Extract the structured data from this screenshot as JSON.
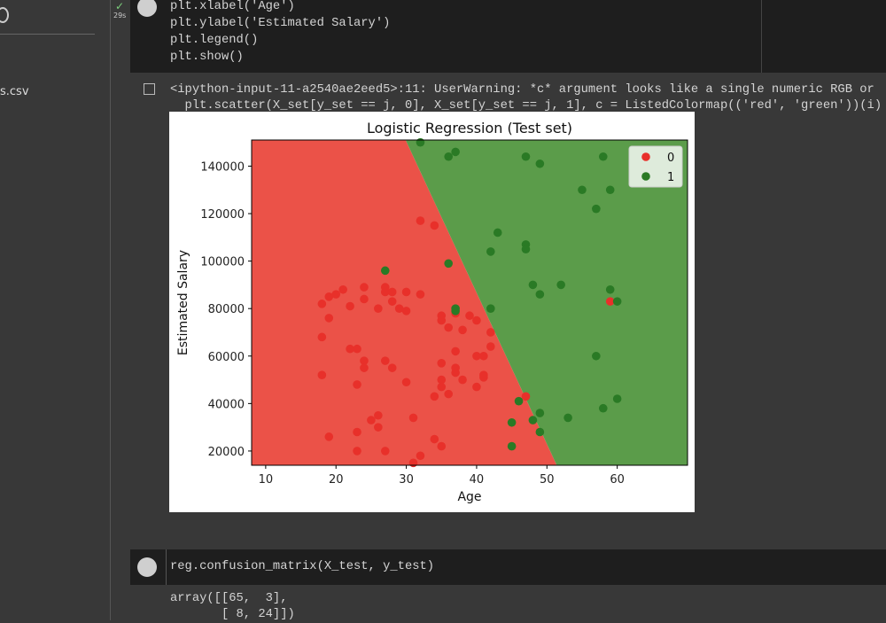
{
  "sidebar": {
    "file_label": "s.csv"
  },
  "code_cell_1": {
    "exec_time": "29s",
    "lines": [
      "plt.xlabel('Age')",
      "plt.ylabel('Estimated Salary')",
      "plt.legend()",
      "plt.show()"
    ]
  },
  "output_1": {
    "warning_lines": [
      "<ipython-input-11-a2540ae2eed5>:11: UserWarning: *c* argument looks like a single numeric RGB or",
      "  plt.scatter(X_set[y_set == j, 0], X_set[y_set == j, 1], c = ListedColormap(('red', 'green'))(i)"
    ]
  },
  "chart_data": {
    "type": "scatter",
    "title": "Logistic Regression (Test set)",
    "x_label": "Age",
    "y_label": "Estimated Salary",
    "xlim": [
      8,
      70
    ],
    "ylim": [
      14000,
      151000
    ],
    "xticks": [
      10,
      20,
      30,
      40,
      50,
      60
    ],
    "yticks": [
      20000,
      40000,
      60000,
      80000,
      100000,
      120000,
      140000
    ],
    "legend": "upper right",
    "region_colors": [
      "#eb5248",
      "#5b9c4a"
    ],
    "decision_boundary": {
      "x": [
        29.9,
        51.4
      ],
      "y": [
        151000,
        14000
      ]
    },
    "series": [
      {
        "name": "0",
        "color": "#e8302a",
        "x": [
          32,
          34,
          18,
          19,
          20,
          21,
          19,
          22,
          24,
          24,
          26,
          27,
          27,
          28,
          28,
          29,
          30,
          30,
          32,
          18,
          18,
          22,
          23,
          24,
          24,
          27,
          28,
          23,
          30,
          25,
          26,
          26,
          31,
          19,
          23,
          23,
          27,
          34,
          35,
          31,
          32,
          35,
          35,
          36,
          37,
          38,
          39,
          40,
          35,
          37,
          37,
          37,
          38,
          35,
          35,
          34,
          36,
          40,
          41,
          40,
          41,
          41,
          42,
          42,
          47,
          59
        ],
        "y": [
          117000,
          115000,
          82000,
          85000,
          86000,
          88000,
          76000,
          81000,
          89000,
          84000,
          80000,
          89000,
          87000,
          87000,
          83000,
          80000,
          79000,
          87000,
          86000,
          68000,
          52000,
          63000,
          63000,
          58000,
          55000,
          58000,
          55000,
          48000,
          49000,
          33000,
          35000,
          30000,
          34000,
          26000,
          28000,
          20000,
          20000,
          25000,
          22000,
          15000,
          18000,
          77000,
          75000,
          72000,
          78000,
          71000,
          77000,
          75000,
          57000,
          62000,
          55000,
          53000,
          50000,
          50000,
          47000,
          43000,
          44000,
          60000,
          60000,
          47000,
          52000,
          51000,
          70000,
          64000,
          43000,
          83000
        ]
      },
      {
        "name": "1",
        "color": "#2a7a25",
        "x": [
          32,
          36,
          37,
          47,
          49,
          58,
          55,
          59,
          57,
          43,
          42,
          47,
          47,
          36,
          27,
          37,
          37,
          42,
          48,
          49,
          52,
          59,
          60,
          57,
          46,
          45,
          45,
          48,
          49,
          49,
          53,
          58,
          60
        ],
        "y": [
          150000,
          144000,
          146000,
          144000,
          141000,
          144000,
          130000,
          130000,
          122000,
          112000,
          104000,
          107000,
          105000,
          99000,
          96000,
          79000,
          80000,
          80000,
          90000,
          86000,
          90000,
          88000,
          83000,
          60000,
          41000,
          32000,
          22000,
          33000,
          36000,
          28000,
          34000,
          38000,
          42000
        ]
      }
    ]
  },
  "code_cell_2": {
    "code": "reg.confusion_matrix(X_test, y_test)",
    "output_lines": [
      "array([[65,  3],",
      "       [ 8, 24]])"
    ]
  }
}
